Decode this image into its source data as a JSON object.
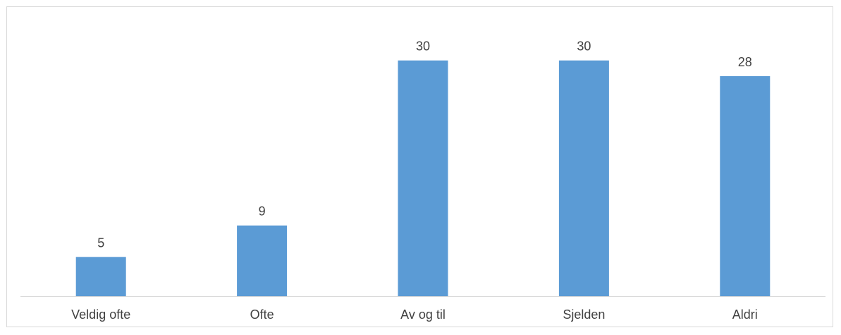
{
  "chart_data": {
    "type": "bar",
    "title": "",
    "xlabel": "",
    "ylabel": "",
    "categories": [
      "Veldig ofte",
      "Ofte",
      "Av og til",
      "Sjelden",
      "Aldri"
    ],
    "values": [
      5,
      9,
      30,
      30,
      28
    ],
    "ylim": [
      0,
      35
    ],
    "grid": false,
    "legend": "none",
    "bar_color": "#5b9bd5",
    "axis_color": "#d9d9d9",
    "label_color": "#404040"
  }
}
